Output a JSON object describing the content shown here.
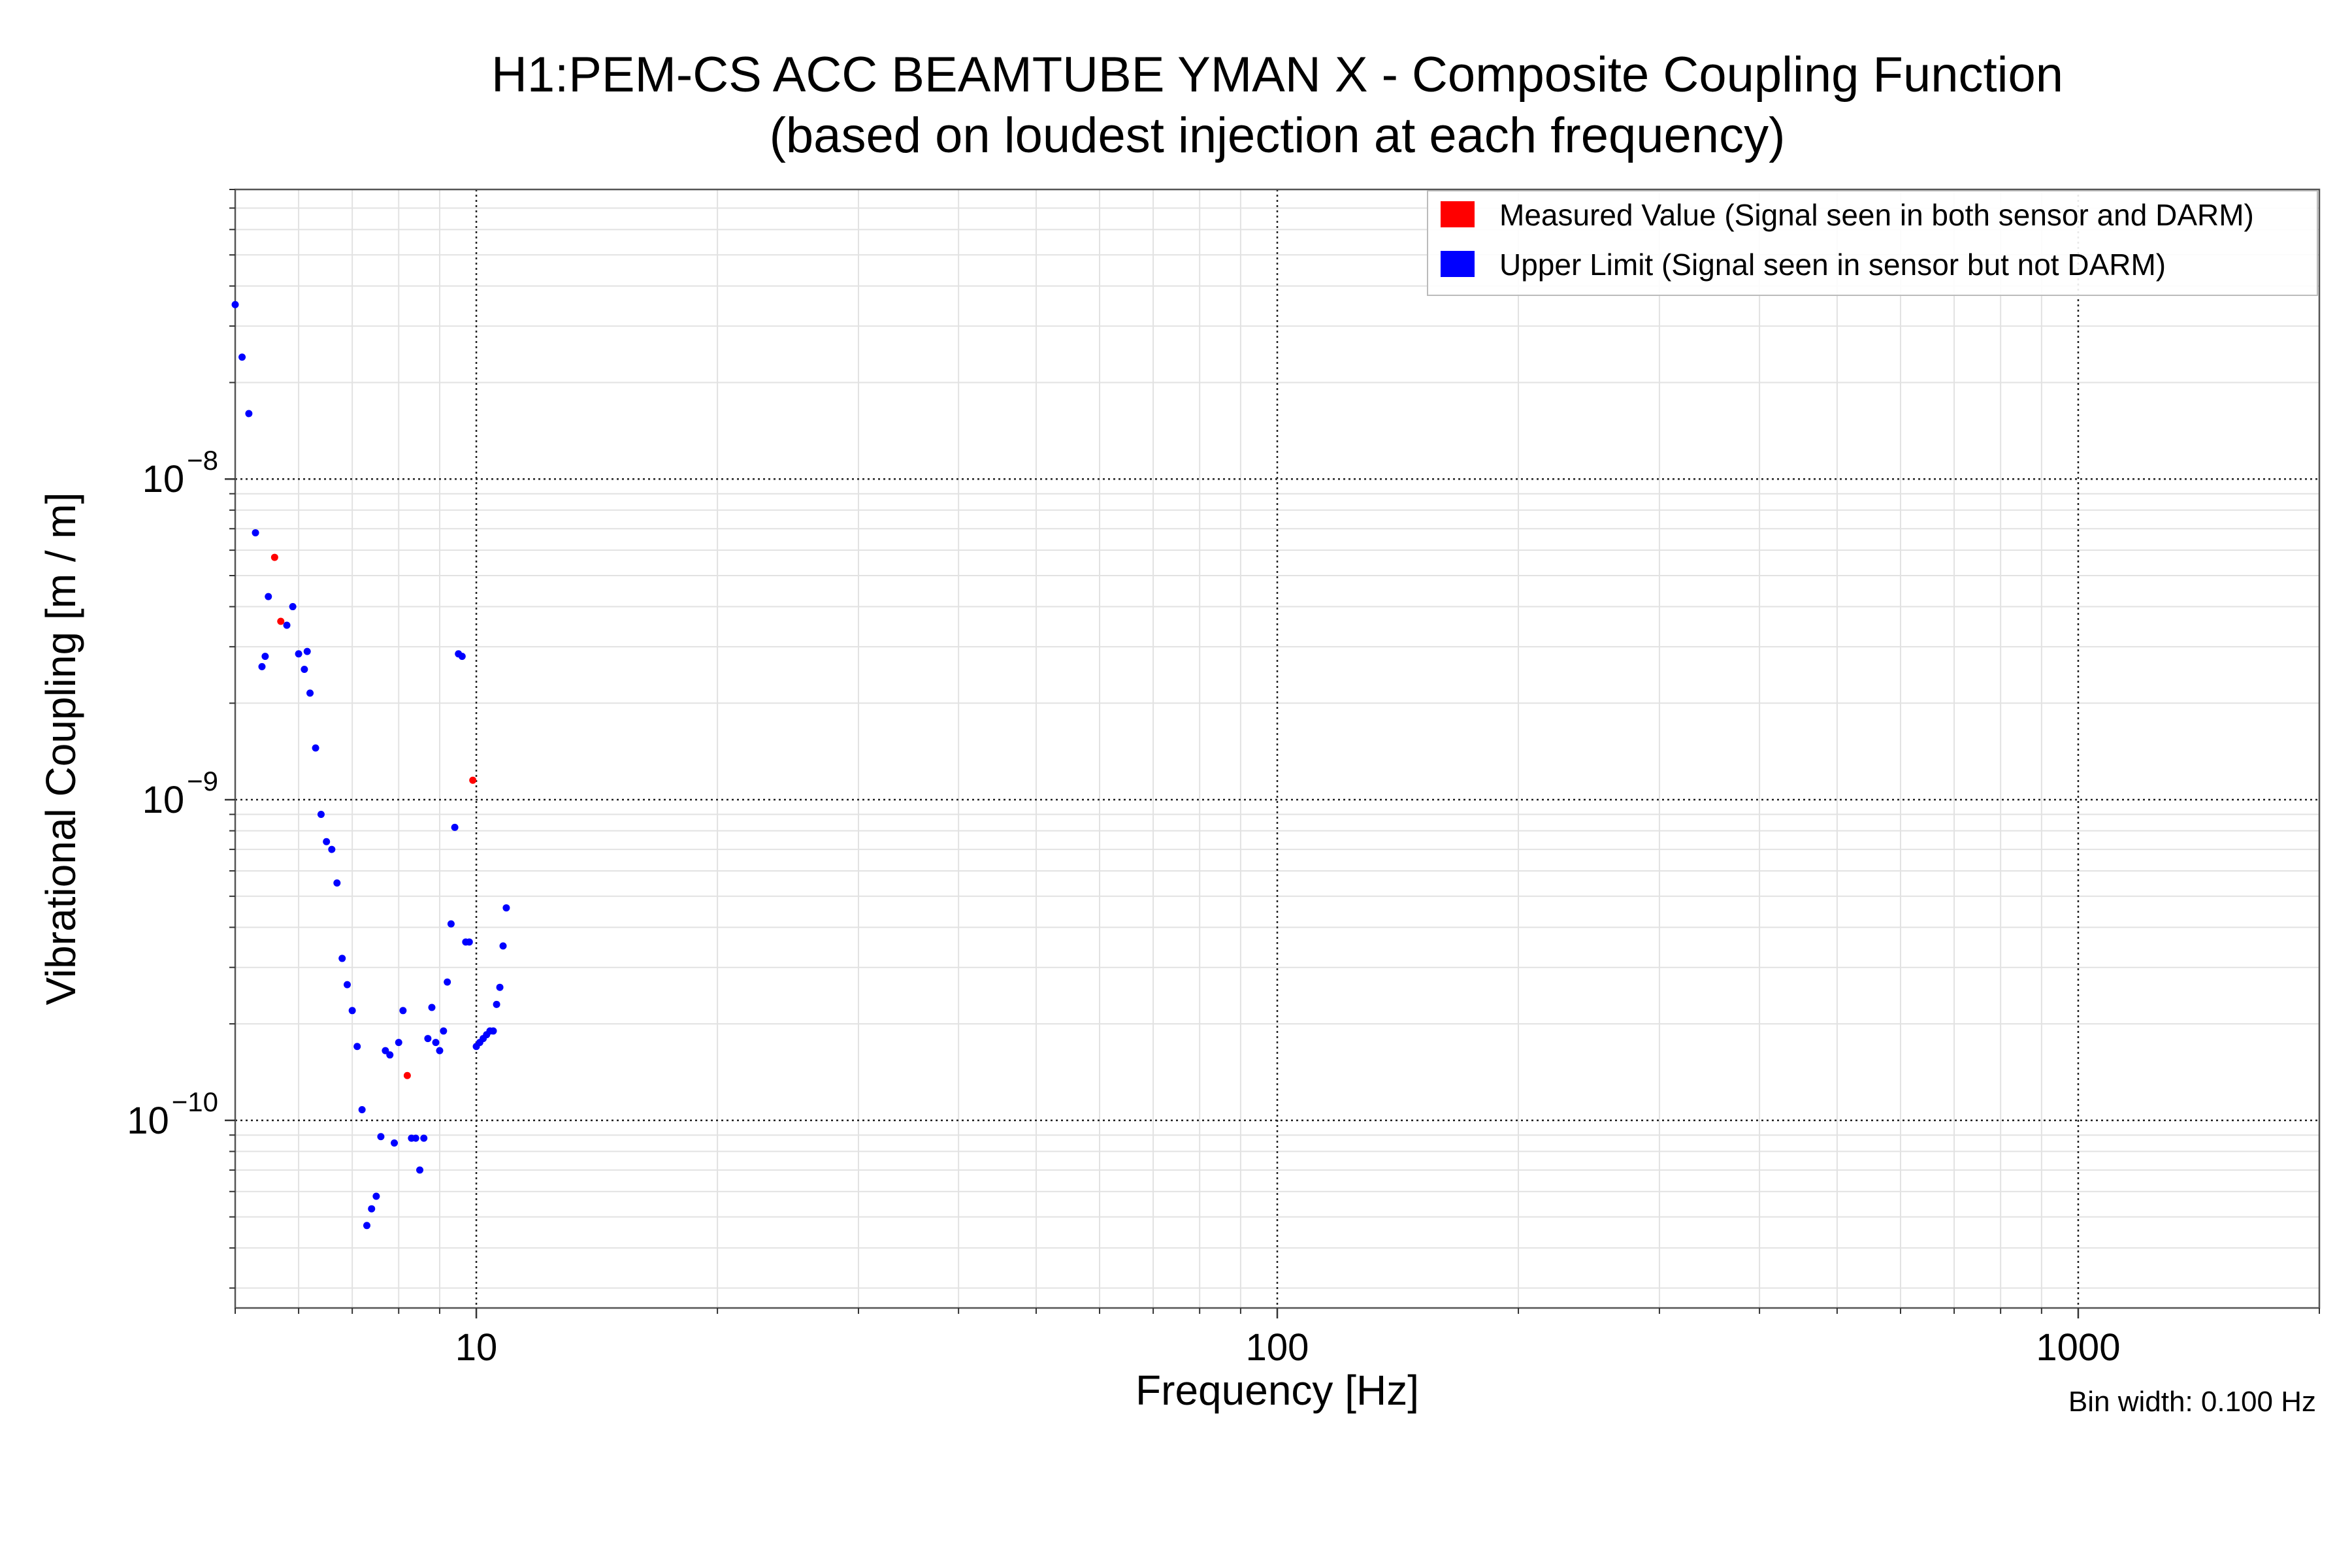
{
  "chart_data": {
    "type": "scatter",
    "title": "H1:PEM-CS ACC BEAMTUBE YMAN X - Composite Coupling Function",
    "subtitle": "(based on loudest injection at each frequency)",
    "xlabel": "Frequency [Hz]",
    "ylabel": "Vibrational Coupling [m / m]",
    "xscale": "log",
    "yscale": "log",
    "xlim": [
      5,
      2000
    ],
    "ylim": [
      2.6e-11,
      8e-08
    ],
    "x_ticks": [
      {
        "value": 10,
        "label": "10"
      },
      {
        "value": 100,
        "label": "100"
      },
      {
        "value": 1000,
        "label": "1000"
      }
    ],
    "y_ticks": [
      {
        "value": 1e-08,
        "base": "10",
        "exp": "−8"
      },
      {
        "value": 1e-09,
        "base": "10",
        "exp": "−9"
      },
      {
        "value": 1e-10,
        "base": "10",
        "exp": "−10"
      }
    ],
    "grid": true,
    "legend_position": "top-right",
    "note": "Bin width: 0.100 Hz",
    "series": [
      {
        "name": "Measured Value (Signal seen in both sensor and DARM)",
        "color": "#ff0000",
        "points": [
          [
            5.6,
            5.7e-09
          ],
          [
            5.7,
            3.6e-09
          ],
          [
            8.2,
            1.38e-10
          ],
          [
            9.9,
            1.15e-09
          ]
        ]
      },
      {
        "name": "Upper Limit (Signal seen in sensor but not DARM)",
        "color": "#0000ff",
        "points": [
          [
            5.0,
            3.5e-08
          ],
          [
            5.1,
            2.4e-08
          ],
          [
            5.2,
            1.6e-08
          ],
          [
            5.3,
            6.8e-09
          ],
          [
            5.4,
            2.6e-09
          ],
          [
            5.45,
            2.8e-09
          ],
          [
            5.5,
            4.3e-09
          ],
          [
            5.8,
            3.5e-09
          ],
          [
            5.9,
            4e-09
          ],
          [
            6.0,
            2.85e-09
          ],
          [
            6.1,
            2.55e-09
          ],
          [
            6.15,
            2.9e-09
          ],
          [
            6.2,
            2.15e-09
          ],
          [
            6.3,
            1.45e-09
          ],
          [
            6.4,
            9e-10
          ],
          [
            6.5,
            7.4e-10
          ],
          [
            6.6,
            7e-10
          ],
          [
            6.7,
            5.5e-10
          ],
          [
            6.8,
            3.2e-10
          ],
          [
            6.9,
            2.65e-10
          ],
          [
            7.0,
            2.2e-10
          ],
          [
            7.1,
            1.7e-10
          ],
          [
            7.2,
            1.08e-10
          ],
          [
            7.3,
            4.7e-11
          ],
          [
            7.4,
            5.3e-11
          ],
          [
            7.5,
            5.8e-11
          ],
          [
            7.6,
            8.9e-11
          ],
          [
            7.7,
            1.65e-10
          ],
          [
            7.8,
            1.6e-10
          ],
          [
            7.9,
            8.5e-11
          ],
          [
            8.0,
            1.75e-10
          ],
          [
            8.1,
            2.2e-10
          ],
          [
            8.3,
            8.8e-11
          ],
          [
            8.4,
            8.8e-11
          ],
          [
            8.5,
            7e-11
          ],
          [
            8.6,
            8.8e-11
          ],
          [
            8.7,
            1.8e-10
          ],
          [
            8.8,
            2.25e-10
          ],
          [
            8.9,
            1.75e-10
          ],
          [
            9.0,
            1.65e-10
          ],
          [
            9.1,
            1.9e-10
          ],
          [
            9.2,
            2.7e-10
          ],
          [
            9.3,
            4.1e-10
          ],
          [
            9.4,
            8.2e-10
          ],
          [
            9.5,
            2.85e-09
          ],
          [
            9.6,
            2.8e-09
          ],
          [
            9.7,
            3.6e-10
          ],
          [
            9.8,
            3.6e-10
          ],
          [
            10.0,
            1.7e-10
          ],
          [
            10.1,
            1.75e-10
          ],
          [
            10.2,
            1.8e-10
          ],
          [
            10.3,
            1.85e-10
          ],
          [
            10.4,
            1.9e-10
          ],
          [
            10.5,
            1.9e-10
          ],
          [
            10.6,
            2.3e-10
          ],
          [
            10.7,
            2.6e-10
          ],
          [
            10.8,
            3.5e-10
          ],
          [
            10.9,
            4.6e-10
          ]
        ]
      }
    ]
  }
}
